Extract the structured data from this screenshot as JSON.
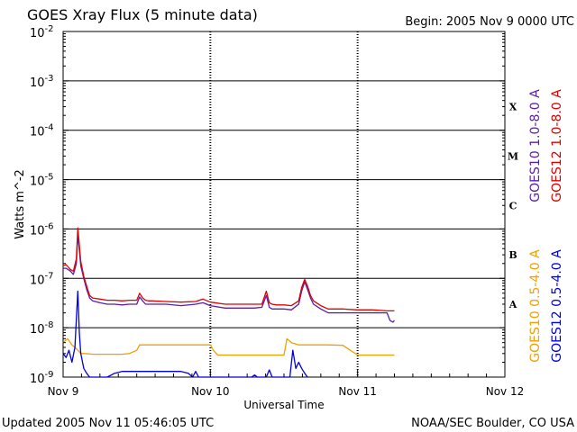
{
  "header": {
    "title": "GOES Xray Flux (5 minute data)",
    "begin": "Begin:  2005 Nov 9 0000 UTC"
  },
  "footer": {
    "updated": "Updated 2005 Nov 11 05:46:05 UTC",
    "source": "NOAA/SEC Boulder, CO USA"
  },
  "chart_data": {
    "type": "line",
    "title": "GOES Xray Flux (5 minute data)",
    "xlabel": "Universal Time",
    "ylabel": "Watts m^-2",
    "yscale": "log",
    "ylim": [
      1e-09,
      0.01
    ],
    "xlim": [
      0,
      3
    ],
    "x_unit": "days since 2005 Nov 9 0000 UTC",
    "xticks": [
      {
        "value": 0,
        "label": "Nov 9"
      },
      {
        "value": 1,
        "label": "Nov 10"
      },
      {
        "value": 2,
        "label": "Nov 11"
      },
      {
        "value": 3,
        "label": "Nov 12"
      }
    ],
    "yticks": [
      {
        "exp": "-2",
        "value": 0.01
      },
      {
        "exp": "-3",
        "value": 0.001
      },
      {
        "exp": "-4",
        "value": 0.0001
      },
      {
        "exp": "-5",
        "value": 1e-05
      },
      {
        "exp": "-6",
        "value": 1e-06
      },
      {
        "exp": "-7",
        "value": 1e-07
      },
      {
        "exp": "-8",
        "value": 1e-08
      },
      {
        "exp": "-9",
        "value": 1e-09
      }
    ],
    "flare_classes": [
      {
        "label": "X",
        "value": 0.0003
      },
      {
        "label": "M",
        "value": 3e-05
      },
      {
        "label": "C",
        "value": 3e-06
      },
      {
        "label": "B",
        "value": 3e-07
      },
      {
        "label": "A",
        "value": 3e-08
      }
    ],
    "grid": true,
    "series": [
      {
        "name": "GOES10 1.0-8.0 A",
        "color": "#5a1ea8",
        "x": [
          0.0,
          0.02,
          0.05,
          0.07,
          0.09,
          0.1,
          0.12,
          0.14,
          0.16,
          0.18,
          0.2,
          0.25,
          0.3,
          0.35,
          0.4,
          0.45,
          0.5,
          0.52,
          0.54,
          0.56,
          0.58,
          0.6,
          0.7,
          0.8,
          0.9,
          0.95,
          1.0,
          1.1,
          1.2,
          1.3,
          1.35,
          1.38,
          1.4,
          1.42,
          1.45,
          1.5,
          1.55,
          1.6,
          1.62,
          1.64,
          1.66,
          1.68,
          1.7,
          1.75,
          1.8,
          1.9,
          2.0,
          2.1,
          2.2,
          2.22,
          2.24,
          2.25
        ],
        "y": [
          1.6e-07,
          1.6e-07,
          1.4e-07,
          1.2e-07,
          2e-07,
          8e-07,
          1.8e-07,
          1e-07,
          6e-08,
          4e-08,
          3.5e-08,
          3.2e-08,
          3e-08,
          3e-08,
          2.9e-08,
          3e-08,
          3e-08,
          4.2e-08,
          3.5e-08,
          3e-08,
          3e-08,
          3e-08,
          3e-08,
          2.8e-08,
          3e-08,
          3.2e-08,
          2.8e-08,
          2.5e-08,
          2.5e-08,
          2.5e-08,
          2.6e-08,
          4.5e-08,
          2.6e-08,
          2.4e-08,
          2.4e-08,
          2.4e-08,
          2.3e-08,
          3e-08,
          5.5e-08,
          8.5e-08,
          6e-08,
          4e-08,
          3e-08,
          2.4e-08,
          2e-08,
          2e-08,
          2e-08,
          2e-08,
          2e-08,
          1.4e-08,
          1.3e-08,
          1.4e-08
        ]
      },
      {
        "name": "GOES12 1.0-8.0 A",
        "color": "#e00000",
        "x": [
          0.0,
          0.02,
          0.05,
          0.07,
          0.09,
          0.1,
          0.12,
          0.14,
          0.16,
          0.18,
          0.2,
          0.25,
          0.3,
          0.35,
          0.4,
          0.45,
          0.5,
          0.52,
          0.54,
          0.56,
          0.58,
          0.6,
          0.7,
          0.8,
          0.9,
          0.95,
          1.0,
          1.1,
          1.2,
          1.3,
          1.35,
          1.38,
          1.4,
          1.42,
          1.45,
          1.5,
          1.55,
          1.6,
          1.62,
          1.64,
          1.66,
          1.68,
          1.7,
          1.75,
          1.8,
          1.9,
          2.0,
          2.1,
          2.2,
          2.25
        ],
        "y": [
          1.8e-07,
          1.9e-07,
          1.5e-07,
          1.4e-07,
          2.5e-07,
          1.05e-06,
          2.2e-07,
          1.1e-07,
          7e-08,
          4.5e-08,
          4e-08,
          3.8e-08,
          3.6e-08,
          3.6e-08,
          3.5e-08,
          3.6e-08,
          3.6e-08,
          5e-08,
          4e-08,
          3.6e-08,
          3.5e-08,
          3.5e-08,
          3.4e-08,
          3.3e-08,
          3.4e-08,
          3.8e-08,
          3.3e-08,
          3e-08,
          3e-08,
          3e-08,
          3e-08,
          5.5e-08,
          3.2e-08,
          3e-08,
          2.9e-08,
          2.9e-08,
          2.8e-08,
          3.5e-08,
          6.5e-08,
          9.5e-08,
          7e-08,
          4.5e-08,
          3.5e-08,
          2.8e-08,
          2.4e-08,
          2.4e-08,
          2.3e-08,
          2.3e-08,
          2.2e-08,
          2.2e-08
        ]
      },
      {
        "name": "GOES10 0.5-4.0 A",
        "color": "#f0a000",
        "x": [
          0.0,
          0.03,
          0.06,
          0.08,
          0.1,
          0.12,
          0.15,
          0.2,
          0.3,
          0.4,
          0.45,
          0.5,
          0.52,
          0.55,
          0.6,
          0.7,
          0.9,
          1.0,
          1.02,
          1.05,
          1.1,
          1.3,
          1.5,
          1.52,
          1.55,
          1.6,
          1.7,
          1.8,
          1.9,
          1.95,
          2.0,
          2.2,
          2.25
        ],
        "y": [
          5e-09,
          6e-09,
          4.5e-09,
          4e-09,
          3.5e-09,
          3e-09,
          3e-09,
          2.9e-09,
          2.9e-09,
          2.9e-09,
          3e-09,
          3.5e-09,
          4.5e-09,
          4.5e-09,
          4.5e-09,
          4.5e-09,
          4.5e-09,
          4.5e-09,
          3.5e-09,
          2.8e-09,
          2.8e-09,
          2.8e-09,
          2.8e-09,
          6e-09,
          5e-09,
          4.5e-09,
          4.5e-09,
          4.5e-09,
          4.4e-09,
          3.5e-09,
          2.8e-09,
          2.8e-09,
          2.8e-09
        ]
      },
      {
        "name": "GOES12 0.5-4.0 A",
        "color": "#0000e0",
        "x": [
          0.0,
          0.02,
          0.04,
          0.06,
          0.08,
          0.09,
          0.1,
          0.11,
          0.12,
          0.14,
          0.16,
          0.18,
          0.2,
          0.25,
          0.28,
          0.3,
          0.35,
          0.4,
          0.45,
          0.5,
          0.55,
          0.6,
          0.7,
          0.8,
          0.85,
          0.88,
          0.9,
          0.92,
          1.0,
          1.02,
          1.05,
          1.1,
          1.15,
          1.2,
          1.25,
          1.28,
          1.3,
          1.32,
          1.35,
          1.38,
          1.4,
          1.42,
          1.45,
          1.5,
          1.52,
          1.54,
          1.56,
          1.58,
          1.6,
          1.62,
          1.64,
          1.66
        ],
        "y": [
          3e-09,
          2.5e-09,
          3.5e-09,
          2e-09,
          4e-09,
          1.5e-08,
          5.5e-08,
          8e-09,
          3e-09,
          1.5e-09,
          1.2e-09,
          1e-09,
          1e-09,
          1e-09,
          1e-09,
          1e-09,
          1.2e-09,
          1.3e-09,
          1.3e-09,
          1.3e-09,
          1.3e-09,
          1.3e-09,
          1.3e-09,
          1.3e-09,
          1.2e-09,
          1e-09,
          1.3e-09,
          1e-09,
          1e-09,
          1e-09,
          1e-09,
          1e-09,
          1e-09,
          1e-09,
          1e-09,
          1e-09,
          1.1e-09,
          1e-09,
          1e-09,
          1e-09,
          1.4e-09,
          1e-09,
          1e-09,
          1e-09,
          1e-09,
          1e-09,
          3.5e-09,
          1.5e-09,
          2e-09,
          1.5e-09,
          1.2e-09,
          1e-09
        ]
      }
    ],
    "legend": {
      "placement": "right",
      "upper": [
        {
          "label": "GOES10 1.0-8.0 A",
          "color": "#5a1ea8"
        },
        {
          "label": "GOES12 1.0-8.0 A",
          "color": "#e00000"
        }
      ],
      "lower": [
        {
          "label": "GOES10 0.5-4.0 A",
          "color": "#f0a000"
        },
        {
          "label": "GOES12 0.5-4.0 A",
          "color": "#0000e0"
        }
      ]
    }
  }
}
